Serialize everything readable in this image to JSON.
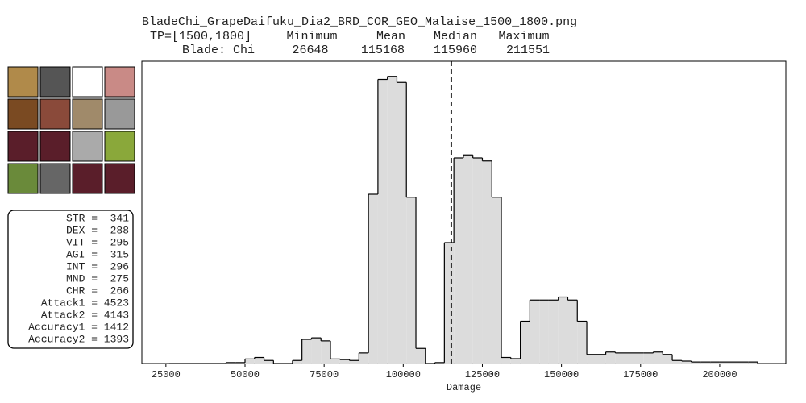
{
  "chart_data": {
    "type": "histogram",
    "title": "BladeChi_GrapeDaifuku_Dia2_BRD_COR_GEO_Malaise_1500_1800.png",
    "stats": {
      "row_labels": [
        "TP=[1500,1800]",
        "Blade: Chi"
      ],
      "headers": [
        "Minimum",
        "Mean",
        "Median",
        "Maximum"
      ],
      "values": [
        26648,
        115168,
        115960,
        211551
      ]
    },
    "x_label": "Damage",
    "color": "#dcdcdc",
    "edge_color": "#000000",
    "bins": [
      26000,
      29000,
      32000,
      35000,
      38000,
      41000,
      44000,
      47000,
      50000,
      53000,
      56000,
      59000,
      62000,
      65000,
      68000,
      71000,
      74000,
      77000,
      80000,
      83000,
      86000,
      89000,
      92000,
      95000,
      98000,
      101000,
      104000,
      107000,
      110000,
      113000,
      116000,
      119000,
      122000,
      125000,
      128000,
      131000,
      134000,
      137000,
      140000,
      143000,
      146000,
      149000,
      152000,
      155000,
      158000,
      161000,
      164000,
      167000,
      170000,
      173000,
      176000,
      179000,
      182000,
      185000,
      188000,
      191000,
      194000,
      197000,
      200000,
      203000,
      206000,
      209000,
      212000
    ],
    "values": [
      0,
      0,
      0,
      0,
      0,
      0,
      0.3,
      0.3,
      1.5,
      2,
      1,
      0,
      0,
      1,
      8,
      8.5,
      7.5,
      1.5,
      1.3,
      1,
      3.5,
      56,
      94,
      95,
      93,
      55,
      5,
      0,
      0.3,
      40,
      68,
      69,
      68,
      67,
      55,
      2,
      1.6,
      14,
      21,
      21,
      21,
      22,
      21,
      14,
      3,
      3,
      3.8,
      3.5,
      3.5,
      3.5,
      3.5,
      3.8,
      3,
      1,
      0.8,
      0.5,
      0.5,
      0.5,
      0.5,
      0.5,
      0.5,
      0.5
    ],
    "xlim": [
      17400,
      220900
    ],
    "ylim": [
      0,
      100
    ],
    "xticks": [
      25000,
      50000,
      75000,
      100000,
      125000,
      150000,
      175000,
      200000
    ],
    "attributes": [
      "STR =  341",
      "DEX =  288",
      "VIT =  295",
      "AGI =  315",
      "INT =  296",
      "MND =  275",
      "CHR =  266",
      "Attack1 = 4523",
      "Attack2 = 4143",
      "Accuracy1 = 1412",
      "Accuracy2 = 1393"
    ]
  }
}
